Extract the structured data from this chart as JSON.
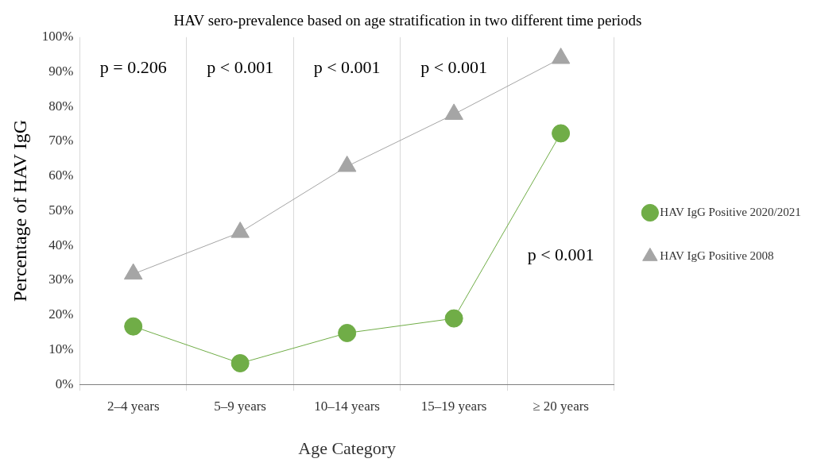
{
  "chart_data": {
    "type": "line",
    "title": "HAV sero-prevalence based on age stratification in two different time periods",
    "xlabel": "Age Category",
    "ylabel": "Percentage of HAV IgG",
    "categories": [
      "2–4 years",
      "5–9 years",
      "10–14 years",
      "15–19 years",
      "≥ 20 years"
    ],
    "series": [
      {
        "name": "HAV IgG Positive 2020/2021",
        "color": "#70ad47",
        "marker": "circle",
        "values": [
          16.7,
          6.1,
          14.8,
          19.0,
          72.3
        ]
      },
      {
        "name": "HAV IgG Positive 2008",
        "color": "#a5a5a5",
        "marker": "triangle",
        "values": [
          31.8,
          43.8,
          62.8,
          77.8,
          93.9
        ]
      }
    ],
    "ylim": [
      0,
      100
    ],
    "yticks": [
      {
        "value": 0,
        "label": "0%"
      },
      {
        "value": 10,
        "label": "10%"
      },
      {
        "value": 20,
        "label": "20%"
      },
      {
        "value": 30,
        "label": "30%"
      },
      {
        "value": 40,
        "label": "40%"
      },
      {
        "value": 50,
        "label": "50%"
      },
      {
        "value": 60,
        "label": "60%"
      },
      {
        "value": 70,
        "label": "70%"
      },
      {
        "value": 80,
        "label": "80%"
      },
      {
        "value": 90,
        "label": "90%"
      },
      {
        "value": 100,
        "label": "100%"
      }
    ],
    "grid": "x",
    "legend": "right",
    "line_style": "solid",
    "annotations": [
      "p = 0.206",
      "p < 0.001",
      "p < 0.001",
      "p < 0.001",
      "p < 0.001"
    ]
  }
}
